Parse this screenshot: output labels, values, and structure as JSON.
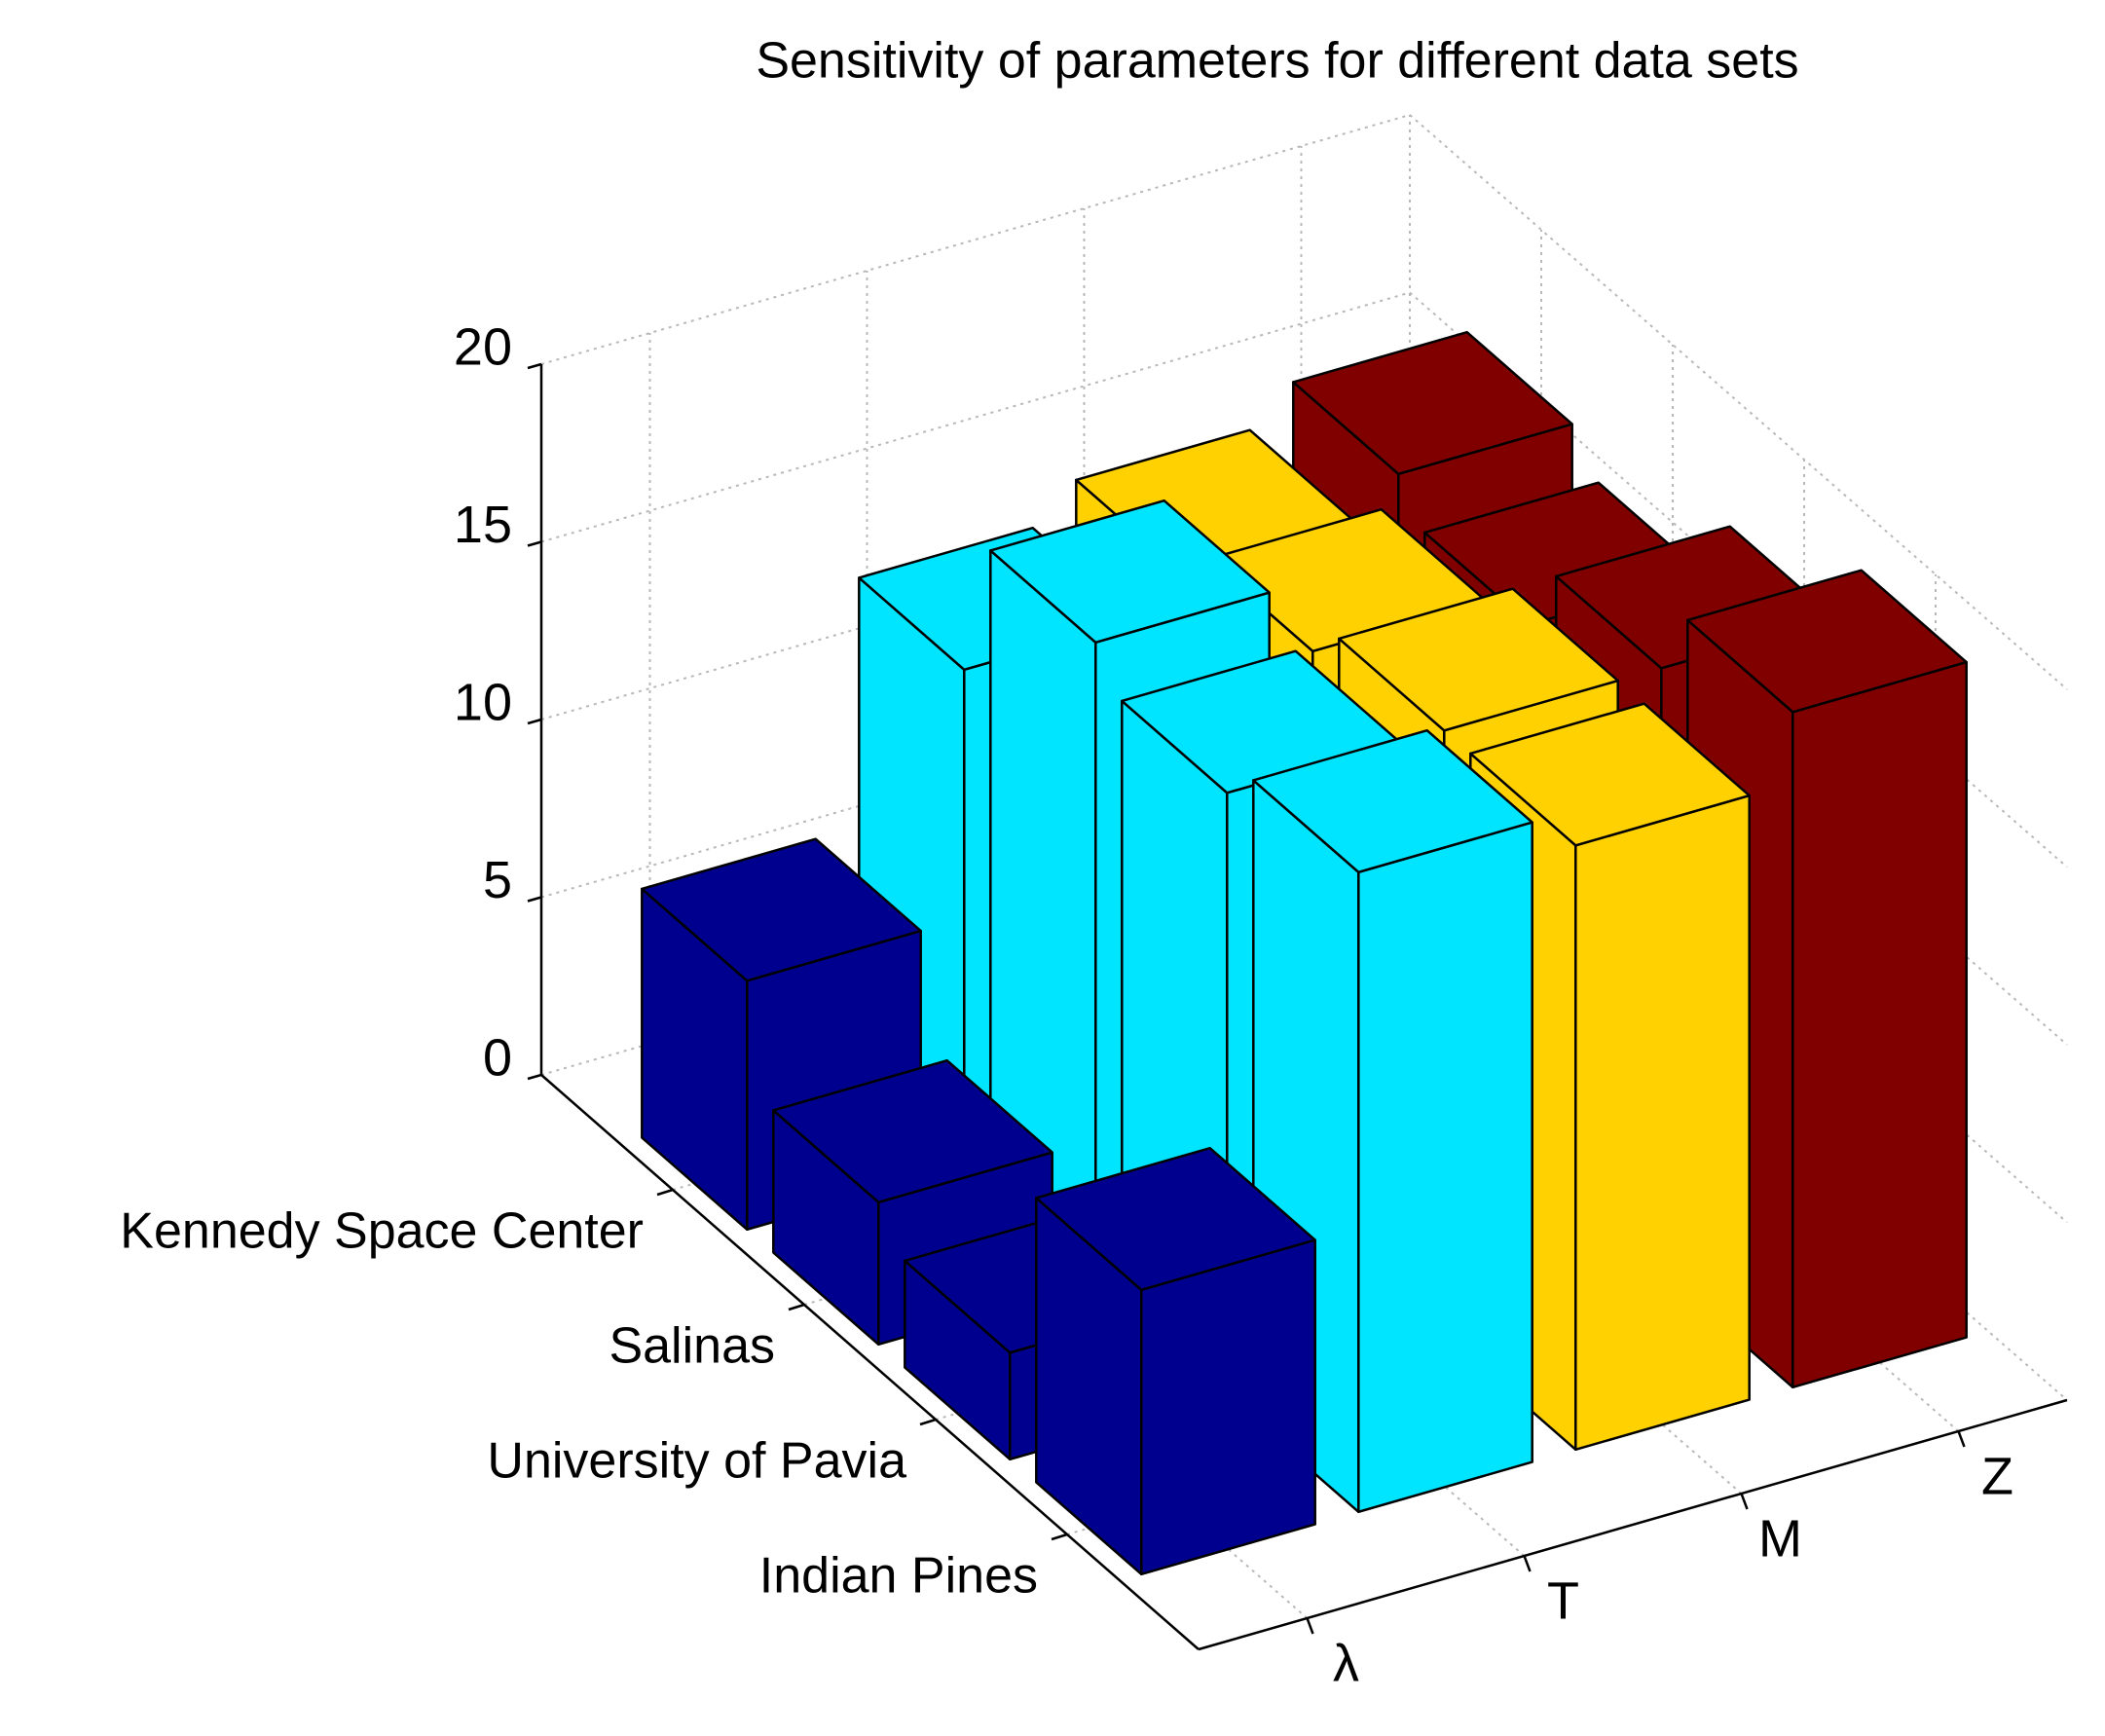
{
  "chart_data": {
    "type": "bar3d",
    "title": "Sensitivity of parameters for different data sets",
    "categories": [
      "Kennedy Space Center",
      "Salinas",
      "University of Pavia",
      "Indian Pines"
    ],
    "series": [
      {
        "name": "λ",
        "color": "#00008f",
        "values": [
          7,
          4,
          3,
          8
        ]
      },
      {
        "name": "T",
        "color": "#00e5ff",
        "values": [
          14,
          18,
          17,
          18
        ]
      },
      {
        "name": "M",
        "color": "#ffd100",
        "values": [
          15,
          16,
          17,
          17
        ]
      },
      {
        "name": "Z",
        "color": "#800000",
        "values": [
          16,
          15,
          17,
          19
        ]
      }
    ],
    "zlim": [
      0,
      20
    ],
    "zticks": [
      0,
      5,
      10,
      15,
      20
    ],
    "grid": true
  }
}
